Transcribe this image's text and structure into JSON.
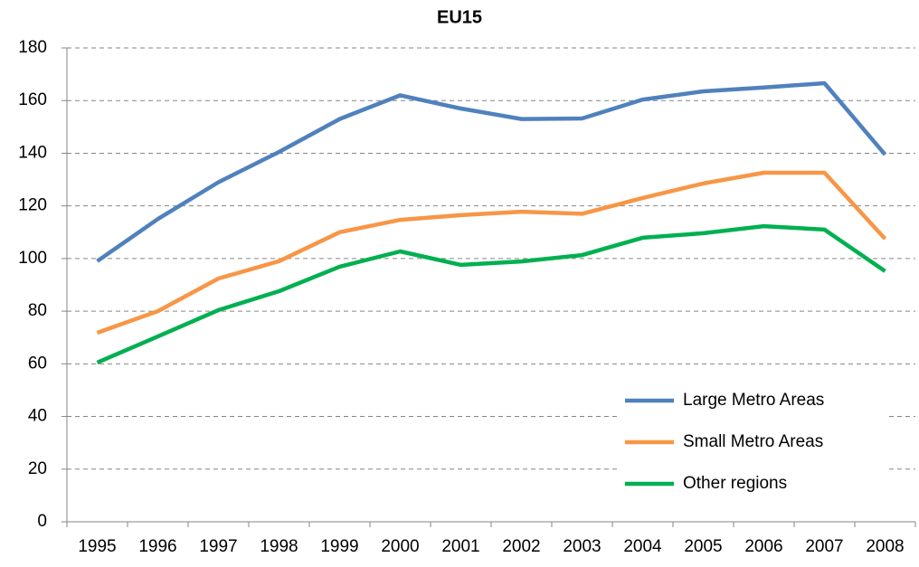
{
  "chart_data": {
    "type": "line",
    "title": "EU15",
    "categories": [
      "1995",
      "1996",
      "1997",
      "1998",
      "1999",
      "2000",
      "2001",
      "2002",
      "2003",
      "2004",
      "2005",
      "2006",
      "2007",
      "2008"
    ],
    "series": [
      {
        "name": "Large Metro Areas",
        "color": "#4f81bd",
        "values": [
          99,
          115,
          129,
          140.5,
          153,
          162,
          157,
          153,
          153.2,
          160.4,
          163.5,
          165,
          166.6,
          139.5
        ]
      },
      {
        "name": "Small Metro Areas",
        "color": "#f79646",
        "values": [
          71.8,
          80,
          92.4,
          99,
          110,
          114.7,
          116.5,
          117.8,
          117,
          123,
          128.5,
          132.6,
          132.6,
          107.5
        ]
      },
      {
        "name": "Other regions",
        "color": "#00b050",
        "values": [
          60.5,
          70.4,
          80.4,
          87.6,
          96.9,
          102.7,
          97.6,
          98.9,
          101.3,
          107.9,
          109.6,
          112.3,
          111,
          95.2
        ]
      }
    ],
    "ylim": [
      0,
      180
    ],
    "yticks": [
      0,
      20,
      40,
      60,
      80,
      100,
      120,
      140,
      160,
      180
    ],
    "grid": true,
    "legend": "lower-right"
  }
}
